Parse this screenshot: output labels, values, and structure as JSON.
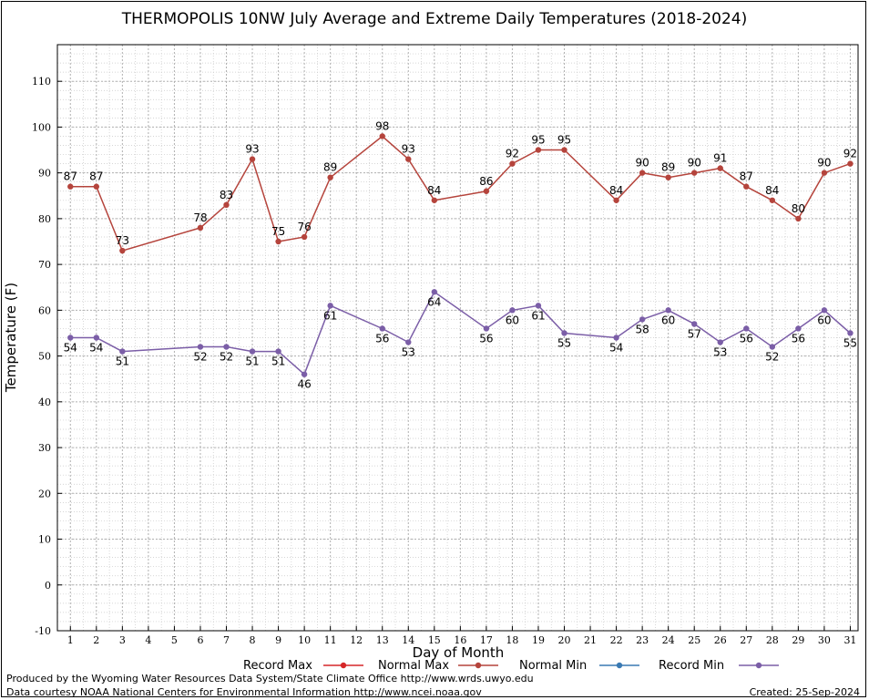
{
  "chart_data": {
    "type": "line",
    "title": "THERMOPOLIS 10NW July Average and Extreme Daily Temperatures (2018-2024)",
    "xlabel": "Day of Month",
    "ylabel": "Temperature (F)",
    "xlim": [
      0.5,
      31.3
    ],
    "ylim": [
      -10,
      118
    ],
    "x_ticks": [
      1,
      2,
      3,
      4,
      5,
      6,
      7,
      8,
      9,
      10,
      11,
      12,
      13,
      14,
      15,
      16,
      17,
      18,
      19,
      20,
      21,
      22,
      23,
      24,
      25,
      26,
      27,
      28,
      29,
      30,
      31
    ],
    "y_ticks": [
      -10,
      0,
      10,
      20,
      30,
      40,
      50,
      60,
      70,
      80,
      90,
      100,
      110
    ],
    "grid": true,
    "legend_position": "bottom",
    "series": [
      {
        "name": "Record Max",
        "color": "#d62728",
        "points": []
      },
      {
        "name": "Normal Max",
        "color": "#b5443c",
        "points": [
          [
            1,
            87
          ],
          [
            2,
            87
          ],
          [
            3,
            73
          ],
          [
            6,
            78
          ],
          [
            7,
            83
          ],
          [
            8,
            93
          ],
          [
            9,
            75
          ],
          [
            10,
            76
          ],
          [
            11,
            89
          ],
          [
            13,
            98
          ],
          [
            14,
            93
          ],
          [
            15,
            84
          ],
          [
            17,
            86
          ],
          [
            18,
            92
          ],
          [
            19,
            95
          ],
          [
            20,
            95
          ],
          [
            22,
            84
          ],
          [
            23,
            90
          ],
          [
            24,
            89
          ],
          [
            25,
            90
          ],
          [
            26,
            91
          ],
          [
            27,
            87
          ],
          [
            28,
            84
          ],
          [
            29,
            80
          ],
          [
            30,
            90
          ],
          [
            31,
            92
          ]
        ]
      },
      {
        "name": "Normal Min",
        "color": "#3a7ab3",
        "points": []
      },
      {
        "name": "Record Min",
        "color": "#7b5ea7",
        "points": [
          [
            1,
            54
          ],
          [
            2,
            54
          ],
          [
            3,
            51
          ],
          [
            6,
            52
          ],
          [
            7,
            52
          ],
          [
            8,
            51
          ],
          [
            9,
            51
          ],
          [
            10,
            46
          ],
          [
            11,
            61
          ],
          [
            13,
            56
          ],
          [
            14,
            53
          ],
          [
            15,
            64
          ],
          [
            17,
            56
          ],
          [
            18,
            60
          ],
          [
            19,
            61
          ],
          [
            20,
            55
          ],
          [
            22,
            54
          ],
          [
            23,
            58
          ],
          [
            24,
            60
          ],
          [
            25,
            57
          ],
          [
            26,
            53
          ],
          [
            27,
            56
          ],
          [
            28,
            52
          ],
          [
            29,
            56
          ],
          [
            30,
            60
          ],
          [
            31,
            55
          ]
        ]
      }
    ]
  },
  "footer": {
    "produced_by": "Produced by the Wyoming Water Resources Data System/State Climate Office http://www.wrds.uwyo.edu",
    "data_courtesy": "Data courtesy NOAA National Centers for Environmental Information http://www.ncei.noaa.gov",
    "created": "Created:  25-Sep-2024"
  }
}
